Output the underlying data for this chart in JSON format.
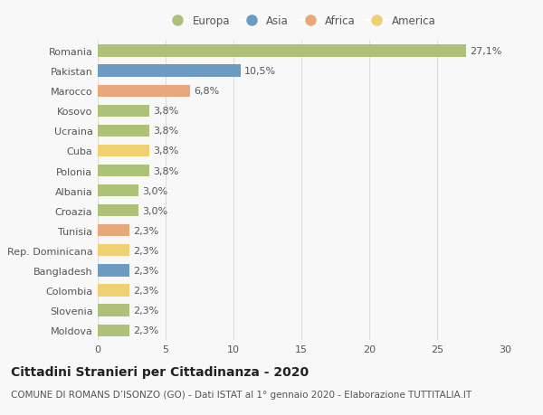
{
  "categories": [
    "Romania",
    "Pakistan",
    "Marocco",
    "Kosovo",
    "Ucraina",
    "Cuba",
    "Polonia",
    "Albania",
    "Croazia",
    "Tunisia",
    "Rep. Dominicana",
    "Bangladesh",
    "Colombia",
    "Slovenia",
    "Moldova"
  ],
  "values": [
    27.1,
    10.5,
    6.8,
    3.8,
    3.8,
    3.8,
    3.8,
    3.0,
    3.0,
    2.3,
    2.3,
    2.3,
    2.3,
    2.3,
    2.3
  ],
  "labels": [
    "27,1%",
    "10,5%",
    "6,8%",
    "3,8%",
    "3,8%",
    "3,8%",
    "3,8%",
    "3,0%",
    "3,0%",
    "2,3%",
    "2,3%",
    "2,3%",
    "2,3%",
    "2,3%",
    "2,3%"
  ],
  "colors": [
    "#adc178",
    "#6b9bc0",
    "#e8a87c",
    "#adc178",
    "#adc178",
    "#f0d070",
    "#adc178",
    "#adc178",
    "#adc178",
    "#e8a87c",
    "#f0d070",
    "#6b9bc0",
    "#f0d070",
    "#adc178",
    "#adc178"
  ],
  "legend_labels": [
    "Europa",
    "Asia",
    "Africa",
    "America"
  ],
  "legend_colors": [
    "#adc178",
    "#6b9bc0",
    "#e8a87c",
    "#f0d070"
  ],
  "title": "Cittadini Stranieri per Cittadinanza - 2020",
  "subtitle": "COMUNE DI ROMANS D’ISONZO (GO) - Dati ISTAT al 1° gennaio 2020 - Elaborazione TUTTITALIA.IT",
  "xlim": [
    0,
    30
  ],
  "xticks": [
    0,
    5,
    10,
    15,
    20,
    25,
    30
  ],
  "background_color": "#f8f8f8",
  "grid_color": "#dddddd",
  "bar_height": 0.6,
  "title_fontsize": 10,
  "subtitle_fontsize": 7.5,
  "label_fontsize": 8,
  "tick_fontsize": 8,
  "legend_fontsize": 8.5
}
